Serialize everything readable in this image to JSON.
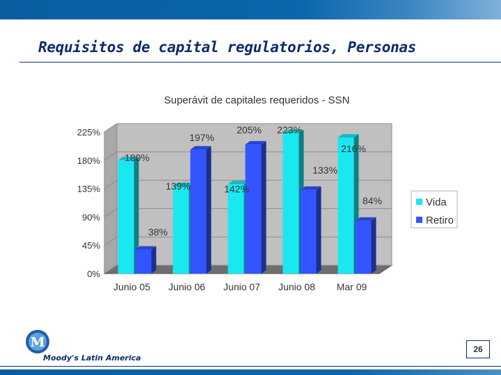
{
  "slide": {
    "title": "Requisitos de capital regulatorios, Personas",
    "page_number": "26",
    "brand": "Moody's Latin America"
  },
  "chart_data": {
    "type": "bar",
    "title": "Superávit de capitales requeridos - SSN",
    "categories": [
      "Junio 05",
      "Junio 06",
      "Junio 07",
      "Junio 08",
      "Mar 09"
    ],
    "series": [
      {
        "name": "Vida",
        "values": [
          180,
          139,
          142,
          223,
          216
        ],
        "labels": [
          "180%",
          "139%",
          "142%",
          "223%",
          "216%"
        ],
        "color": "#1ae8f0"
      },
      {
        "name": "Retiro",
        "values": [
          38,
          197,
          205,
          133,
          84
        ],
        "labels": [
          "38%",
          "197%",
          "205%",
          "133%",
          "84%"
        ],
        "color": "#3355ff"
      }
    ],
    "yticks": [
      "0%",
      "45%",
      "90%",
      "135%",
      "180%",
      "225%"
    ],
    "ylim": [
      0,
      225
    ],
    "grid": true,
    "legend": "right"
  }
}
